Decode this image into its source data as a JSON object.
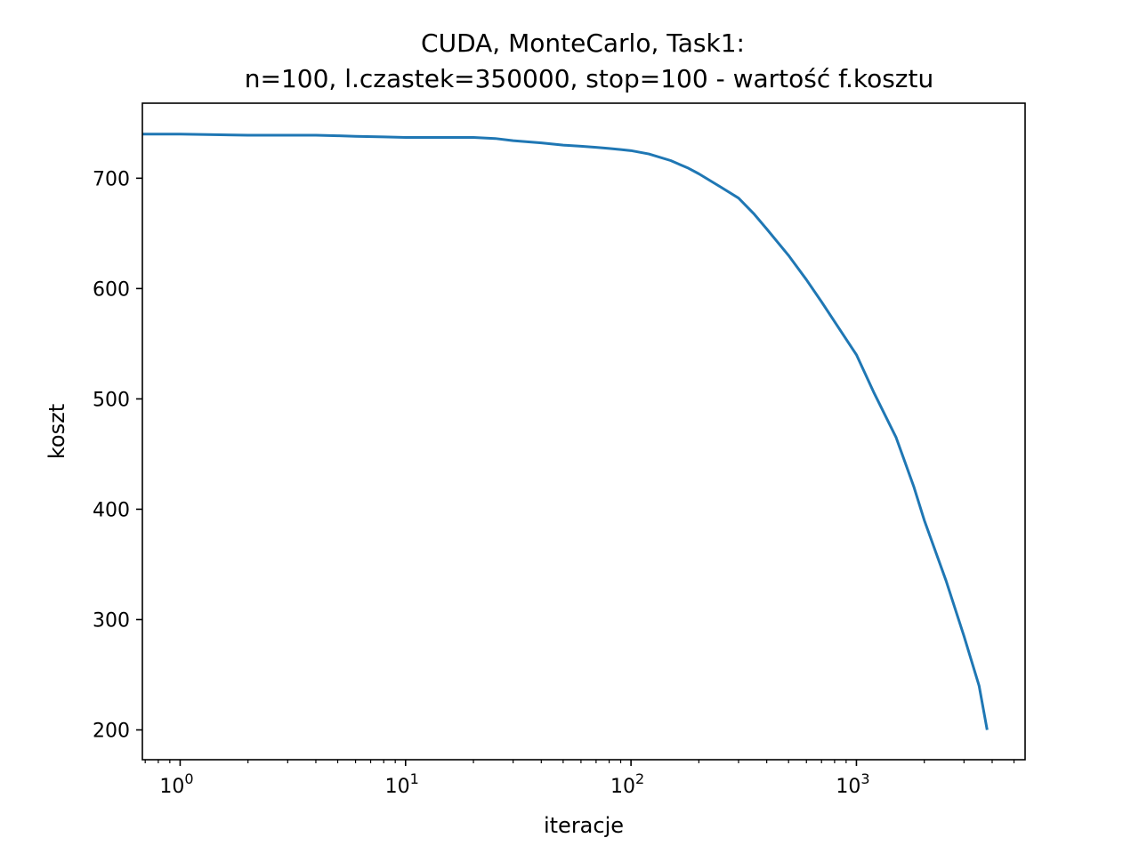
{
  "chart_data": {
    "type": "line",
    "title_line1": "CUDA, MonteCarlo, Task1:",
    "title_line2": "n=100, l.czastek=350000, stop=100 - wartość f.kosztu",
    "xlabel": "iteracje",
    "ylabel": "koszt",
    "xscale": "log",
    "xlim": [
      0.68,
      5600
    ],
    "ylim": [
      173,
      768
    ],
    "grid": false,
    "legend": "none",
    "color": "#1f77b4",
    "x_ticks": [
      {
        "value": 1,
        "base": "10",
        "exp": "0"
      },
      {
        "value": 10,
        "base": "10",
        "exp": "1"
      },
      {
        "value": 100,
        "base": "10",
        "exp": "2"
      },
      {
        "value": 1000,
        "base": "10",
        "exp": "3"
      }
    ],
    "y_ticks": [
      200,
      300,
      400,
      500,
      600,
      700
    ],
    "series": [
      {
        "x": [
          0.68,
          1,
          2,
          3,
          4,
          5,
          6,
          8,
          10,
          15,
          20,
          25,
          30,
          40,
          50,
          60,
          70,
          80,
          90,
          100,
          120,
          150,
          180,
          200,
          250,
          300,
          350,
          400,
          500,
          600,
          700,
          800,
          1000,
          1200,
          1500,
          1800,
          2000,
          2500,
          3000,
          3500,
          3800
        ],
        "y": [
          740,
          740,
          739,
          739,
          739,
          738.5,
          738,
          737.5,
          737,
          737,
          737,
          736,
          734,
          732,
          730,
          729,
          728,
          727,
          726,
          725,
          722,
          716,
          709,
          704,
          692,
          682,
          668,
          654,
          630,
          608,
          588,
          570,
          540,
          505,
          465,
          420,
          390,
          335,
          285,
          240,
          200
        ]
      }
    ]
  }
}
